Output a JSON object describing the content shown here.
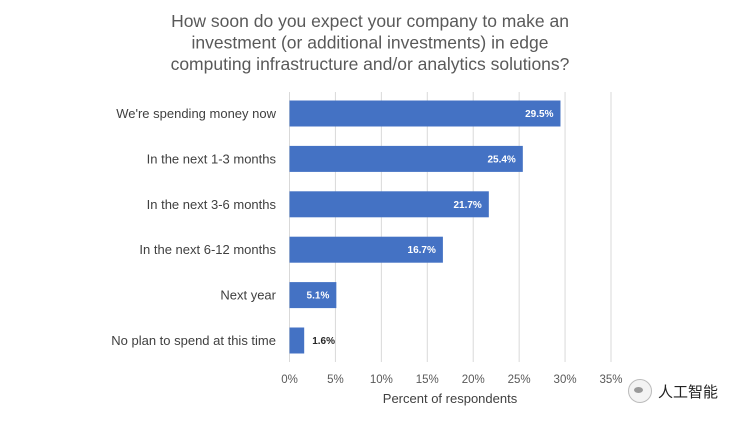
{
  "chart_data": {
    "type": "bar",
    "orientation": "horizontal",
    "title": "How soon do you expect your company to make an investment (or additional investments) in edge computing infrastructure and/or analytics solutions?",
    "title_lines": [
      "How soon do you expect your company to make an",
      "investment (or additional investments) in edge",
      "computing infrastructure and/or analytics solutions?"
    ],
    "categories": [
      "We're spending money now",
      "In the next 1-3 months",
      "In the next 3-6 months",
      "In the next 6-12 months",
      "Next year",
      "No plan to spend at this time"
    ],
    "values": [
      29.5,
      25.4,
      21.7,
      16.7,
      5.1,
      1.6
    ],
    "data_labels": [
      "29.5%",
      "25.4%",
      "21.7%",
      "16.7%",
      "5.1%",
      "1.6%"
    ],
    "xlabel": "Percent of respondents",
    "ylabel": "",
    "xlim": [
      0,
      35
    ],
    "x_ticks": [
      0,
      5,
      10,
      15,
      20,
      25,
      30,
      35
    ],
    "x_tick_labels": [
      "0%",
      "5%",
      "10%",
      "15%",
      "20%",
      "25%",
      "30%",
      "35%"
    ],
    "grid": true,
    "bar_color": "#4472C4",
    "grid_color": "#D9D9D9"
  },
  "watermark": {
    "text": "人工智能",
    "icon": "wechat-icon"
  }
}
